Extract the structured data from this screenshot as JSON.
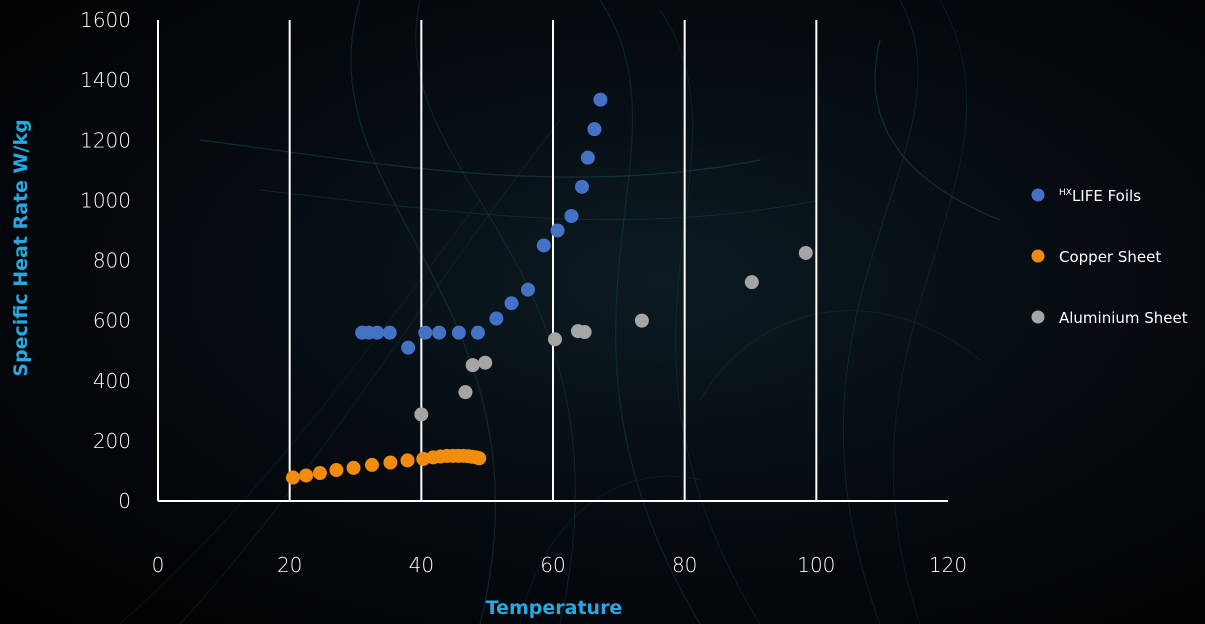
{
  "chart_data": {
    "type": "scatter",
    "xlabel": "Temperature",
    "ylabel": "Specific Heat Rate W/kg",
    "xlim": [
      0,
      120
    ],
    "ylim": [
      0,
      1600
    ],
    "x_ticks": [
      0,
      20,
      40,
      60,
      80,
      100,
      120
    ],
    "y_ticks": [
      0,
      200,
      400,
      600,
      800,
      1000,
      1200,
      1400,
      1600
    ],
    "vertical_grid": true,
    "horizontal_grid": false,
    "legend_position": "right",
    "series": [
      {
        "name": "LIFE Foils",
        "name_prefix_superscript": "HX",
        "color": "#4472c4",
        "points": [
          [
            31,
            560
          ],
          [
            32,
            560
          ],
          [
            33.3,
            560
          ],
          [
            35.2,
            560
          ],
          [
            38,
            510
          ],
          [
            40.6,
            560
          ],
          [
            42.7,
            560
          ],
          [
            45.7,
            560
          ],
          [
            48.6,
            560
          ],
          [
            51.4,
            607
          ],
          [
            53.7,
            658
          ],
          [
            56.2,
            703
          ],
          [
            58.6,
            850
          ],
          [
            60.7,
            900
          ],
          [
            62.8,
            948
          ],
          [
            64.4,
            1045
          ],
          [
            65.3,
            1142
          ],
          [
            66.3,
            1237
          ],
          [
            67.2,
            1335
          ]
        ]
      },
      {
        "name": "Copper Sheet",
        "color": "#f28c0f",
        "points": [
          [
            20.5,
            78
          ],
          [
            22.5,
            85
          ],
          [
            24.6,
            93
          ],
          [
            27.1,
            103
          ],
          [
            29.7,
            110
          ],
          [
            32.5,
            120
          ],
          [
            35.3,
            128
          ],
          [
            37.9,
            135
          ],
          [
            40.3,
            140
          ],
          [
            41.8,
            145
          ],
          [
            42.9,
            148
          ],
          [
            43.9,
            150
          ],
          [
            44.8,
            150
          ],
          [
            45.6,
            150
          ],
          [
            46.4,
            150
          ],
          [
            47.1,
            149
          ],
          [
            47.7,
            147
          ],
          [
            48.3,
            145
          ],
          [
            48.8,
            142
          ]
        ]
      },
      {
        "name": "Aluminium Sheet",
        "color": "#a5a5a5",
        "points": [
          [
            40,
            288
          ],
          [
            46.7,
            362
          ],
          [
            47.8,
            452
          ],
          [
            49.7,
            460
          ],
          [
            60.3,
            538
          ],
          [
            63.8,
            565
          ],
          [
            64.8,
            562
          ],
          [
            73.5,
            600
          ],
          [
            90.2,
            728
          ],
          [
            98.4,
            825
          ]
        ]
      }
    ]
  }
}
